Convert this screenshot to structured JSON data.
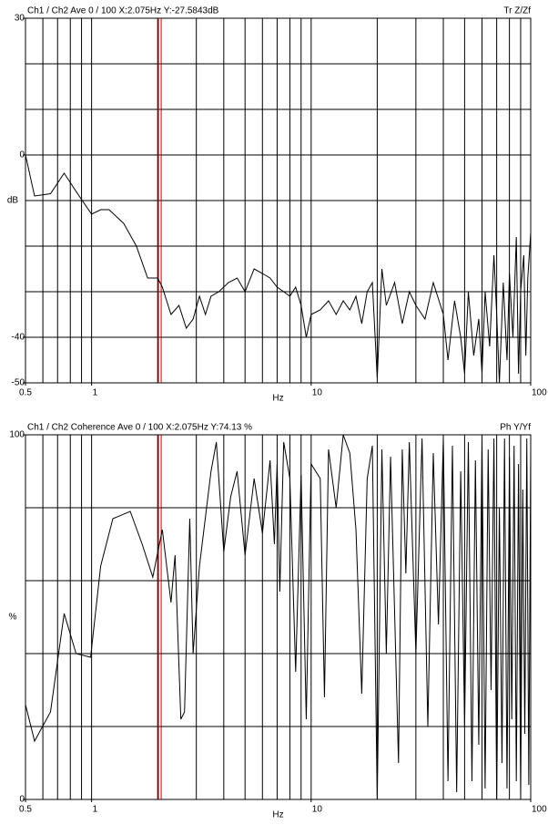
{
  "chart_data": [
    {
      "type": "line",
      "title": "Ch1 / Ch2  Ave 0 / 100  X:2.075Hz  Y:-27.5843dB",
      "title_right": "Tr Z/Zf",
      "xlabel": "Hz",
      "ylabel": "dB",
      "xscale": "log",
      "xlim": [
        0.5,
        100
      ],
      "ylim": [
        -50,
        30
      ],
      "xticks": [
        0.5,
        1,
        10,
        100
      ],
      "yticks": [
        30,
        0,
        -40,
        -50
      ],
      "xgrid": [
        0.6,
        0.7,
        0.8,
        0.9,
        1,
        2,
        3,
        4,
        5,
        6,
        7,
        8,
        9,
        10,
        20,
        30,
        40,
        50,
        60,
        70,
        80,
        90
      ],
      "ygrid": [
        20,
        10,
        0,
        -10,
        -20,
        -30,
        -40
      ],
      "cursor": {
        "x": 2.075,
        "color": "#c00000"
      },
      "x": [
        0.5,
        0.55,
        0.65,
        0.75,
        0.85,
        1.0,
        1.1,
        1.2,
        1.4,
        1.6,
        1.8,
        2.0,
        2.1,
        2.3,
        2.5,
        2.7,
        2.9,
        3.1,
        3.3,
        3.5,
        3.8,
        4.2,
        4.6,
        5,
        5.5,
        6,
        6.5,
        7,
        7.5,
        8,
        8.5,
        9,
        9.5,
        10,
        11,
        12,
        13,
        14,
        15,
        16,
        17,
        18,
        19,
        20,
        21,
        22,
        24,
        26,
        28,
        30,
        33,
        36,
        40,
        42,
        45,
        48,
        50,
        52,
        55,
        58,
        60,
        62,
        65,
        68,
        70,
        72,
        75,
        78,
        80,
        83,
        86,
        88,
        90,
        93,
        95,
        97,
        100
      ],
      "series": [
        {
          "color": "#000000",
          "values": [
            0,
            -9,
            -8.5,
            -4,
            -8,
            -13,
            -12,
            -12,
            -15,
            -20,
            -27,
            -27,
            -29,
            -35,
            -33,
            -38,
            -36,
            -31,
            -35,
            -31,
            -30,
            -28,
            -27,
            -30,
            -25,
            -26,
            -27,
            -29,
            -30,
            -31,
            -29,
            -33,
            -40,
            -35,
            -34,
            -32,
            -35,
            -32,
            -34,
            -31,
            -37,
            -30,
            -28,
            -49,
            -25,
            -33,
            -28,
            -37,
            -30,
            -33,
            -36,
            -28,
            -35,
            -45,
            -32,
            -40,
            -48,
            -30,
            -44,
            -36,
            -48,
            -30,
            -42,
            -22,
            -35,
            -50,
            -28,
            -45,
            -26,
            -40,
            -18,
            -48,
            -30,
            -22,
            -44,
            -27,
            -17
          ]
        }
      ]
    },
    {
      "type": "line",
      "title": "Ch1 / Ch2  Coherence Ave 0 / 100  X:2.075Hz  Y:74.13 %",
      "title_right": "Ph Y/Yf",
      "xlabel": "Hz",
      "ylabel": "%",
      "xscale": "log",
      "xlim": [
        0.5,
        100
      ],
      "ylim": [
        0,
        100
      ],
      "xticks": [
        0.5,
        1,
        10,
        100
      ],
      "yticks": [
        100,
        0
      ],
      "xgrid": [
        0.6,
        0.7,
        0.8,
        0.9,
        1,
        2,
        3,
        4,
        5,
        6,
        7,
        8,
        9,
        10,
        20,
        30,
        40,
        50,
        60,
        70,
        80,
        90
      ],
      "ygrid": [
        80,
        60,
        40,
        20
      ],
      "cursor": {
        "x": 2.075,
        "color": "#c00000"
      },
      "x": [
        0.5,
        0.55,
        0.65,
        0.75,
        0.85,
        0.99,
        1.1,
        1.25,
        1.5,
        1.7,
        1.9,
        2.1,
        2.3,
        2.4,
        2.55,
        2.65,
        2.8,
        2.9,
        3.1,
        3.5,
        3.7,
        4.0,
        4.3,
        4.6,
        5.0,
        5.5,
        6,
        6.5,
        6.8,
        7,
        7.2,
        7.5,
        8,
        8.5,
        9,
        9.5,
        10,
        11,
        11.5,
        12,
        13,
        14,
        15,
        16,
        17,
        18,
        19,
        20,
        21,
        22,
        23,
        25,
        26,
        27,
        28,
        30,
        32,
        34,
        36,
        38,
        40,
        42,
        44,
        46,
        48,
        50,
        52,
        54,
        56,
        58,
        60,
        62,
        64,
        66,
        68,
        70,
        72,
        74,
        76,
        78,
        80,
        82,
        84,
        86,
        88,
        90,
        92,
        94,
        96,
        98,
        100
      ],
      "series": [
        {
          "color": "#000000",
          "values": [
            26,
            16,
            24,
            51,
            40,
            39,
            64,
            77,
            79,
            70,
            61,
            74,
            54,
            67,
            22,
            24,
            77,
            40,
            64,
            90,
            98,
            68,
            83,
            90,
            67,
            88,
            73,
            93,
            70,
            92,
            57,
            98,
            88,
            35,
            89,
            22,
            92,
            88,
            28,
            96,
            80,
            100,
            95,
            74,
            29,
            88,
            97,
            0,
            96,
            40,
            94,
            10,
            96,
            62,
            98,
            40,
            99,
            20,
            95,
            48,
            99,
            5,
            97,
            2,
            90,
            20,
            98,
            5,
            93,
            15,
            99,
            3,
            96,
            30,
            99,
            0,
            80,
            10,
            99,
            3,
            94,
            22,
            97,
            5,
            92,
            1,
            85,
            18,
            99,
            4,
            96
          ]
        }
      ]
    }
  ]
}
